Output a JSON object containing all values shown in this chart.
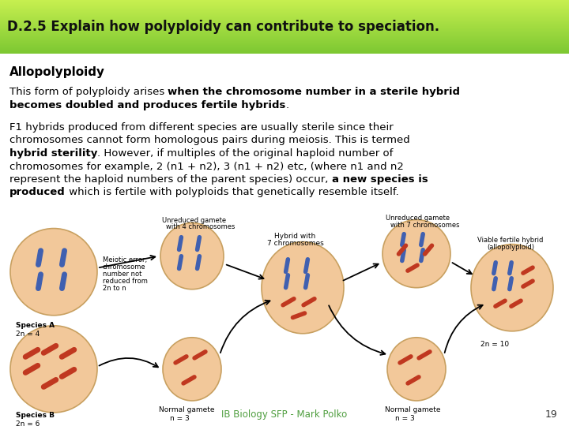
{
  "title": "D.2.5 Explain how polyploidy can contribute to speciation.",
  "title_bg_top": "#c8e87a",
  "title_bg_bot": "#8dc63f",
  "title_fg": "#000000",
  "bg_color": "#ffffff",
  "subtitle": "Allopolyploidy",
  "footer_text": "IB Biology SFP - Mark Polko",
  "footer_color": "#4f9e3f",
  "page_num": "19",
  "cell_color": "#f2c89a",
  "cell_edge": "#c8a060",
  "blue_chr": "#4060b0",
  "red_chr": "#c03820"
}
